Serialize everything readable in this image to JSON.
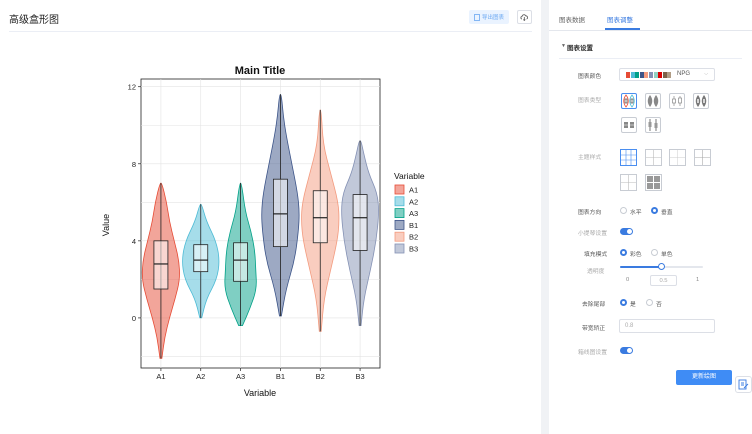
{
  "page": {
    "title": "高级盒形图",
    "export_label": "导出图表",
    "cloud_icon": "cloud-download-icon"
  },
  "panel": {
    "tabs": [
      {
        "label": "图表数据",
        "active": false
      },
      {
        "label": "图表调整",
        "active": true
      }
    ],
    "section_title": "图表设置",
    "color_label": "图表颜色",
    "palette": {
      "name": "NPG",
      "colors": [
        "#e64b35",
        "#4dbbd5",
        "#00a087",
        "#3c5488",
        "#f39b7f",
        "#8491b4",
        "#91d1c2",
        "#dc0000",
        "#7e6148",
        "#b09c85"
      ]
    },
    "chart_type_label": "图表类型",
    "theme_label": "主题样式",
    "orientation": {
      "label": "图表方向",
      "options": [
        "水平",
        "垂直"
      ],
      "selected": 1
    },
    "violin_label": "小提琴设置",
    "violin_enabled": true,
    "fill": {
      "label": "填充模式",
      "options": [
        "彩色",
        "单色"
      ],
      "selected": 0
    },
    "opacity": {
      "label": "透明度",
      "min": "0",
      "value": "0.5",
      "max": "1",
      "fraction": 0.5
    },
    "trim": {
      "label": "去除尾部",
      "options": [
        "是",
        "否"
      ],
      "selected": 0
    },
    "bandwidth": {
      "label": "带宽矫正",
      "placeholder": "0.8"
    },
    "boxline_label": "箱线图设置",
    "boxline_enabled": true,
    "update_label": "更新绘图"
  },
  "chart_data": {
    "type": "violin",
    "title": "Main Title",
    "xlabel": "Variable",
    "ylabel": "Value",
    "ylim": [
      -2.6,
      12.4
    ],
    "yticks": [
      0,
      4,
      8,
      12
    ],
    "legend_title": "Variable",
    "legend_position": "right",
    "grid": true,
    "series": [
      {
        "name": "A1",
        "color": "#e64b35",
        "min": -2.1,
        "max": 7.0,
        "q1": 1.5,
        "median": 2.8,
        "q3": 4.0,
        "density": [
          [
            -2.1,
            0.05
          ],
          [
            -1.0,
            0.2
          ],
          [
            0.0,
            0.45
          ],
          [
            1.0,
            0.75
          ],
          [
            2.0,
            1.0
          ],
          [
            3.0,
            0.95
          ],
          [
            4.0,
            0.7
          ],
          [
            5.0,
            0.45
          ],
          [
            6.0,
            0.3
          ],
          [
            7.0,
            0.05
          ]
        ]
      },
      {
        "name": "A2",
        "color": "#4dbbd5",
        "min": 0.0,
        "max": 5.9,
        "q1": 2.4,
        "median": 3.0,
        "q3": 3.8,
        "density": [
          [
            0.0,
            0.05
          ],
          [
            1.0,
            0.3
          ],
          [
            2.0,
            0.85
          ],
          [
            3.0,
            1.0
          ],
          [
            4.0,
            0.8
          ],
          [
            5.0,
            0.3
          ],
          [
            5.9,
            0.05
          ]
        ]
      },
      {
        "name": "A3",
        "color": "#00a087",
        "min": -0.4,
        "max": 7.0,
        "q1": 1.9,
        "median": 3.0,
        "q3": 3.9,
        "density": [
          [
            -0.4,
            0.1
          ],
          [
            0.5,
            0.5
          ],
          [
            1.5,
            0.85
          ],
          [
            2.5,
            0.8
          ],
          [
            3.5,
            0.75
          ],
          [
            4.5,
            0.55
          ],
          [
            5.5,
            0.25
          ],
          [
            7.0,
            0.05
          ]
        ]
      },
      {
        "name": "B1",
        "color": "#3c5488",
        "min": 0.1,
        "max": 11.6,
        "q1": 3.7,
        "median": 5.4,
        "q3": 7.2,
        "density": [
          [
            0.1,
            0.05
          ],
          [
            1.5,
            0.3
          ],
          [
            3.0,
            0.75
          ],
          [
            4.5,
            0.95
          ],
          [
            5.5,
            1.0
          ],
          [
            6.5,
            0.9
          ],
          [
            8.0,
            0.6
          ],
          [
            9.5,
            0.3
          ],
          [
            10.5,
            0.15
          ],
          [
            11.6,
            0.05
          ]
        ]
      },
      {
        "name": "B2",
        "color": "#f39b7f",
        "min": -0.7,
        "max": 10.8,
        "q1": 3.9,
        "median": 5.2,
        "q3": 6.6,
        "density": [
          [
            -0.7,
            0.05
          ],
          [
            1.0,
            0.2
          ],
          [
            2.5,
            0.55
          ],
          [
            4.0,
            0.9
          ],
          [
            5.0,
            1.0
          ],
          [
            6.0,
            0.95
          ],
          [
            7.5,
            0.55
          ],
          [
            9.0,
            0.15
          ],
          [
            10.8,
            0.05
          ]
        ]
      },
      {
        "name": "B3",
        "color": "#8491b4",
        "min": -0.4,
        "max": 9.2,
        "q1": 3.5,
        "median": 5.2,
        "q3": 6.4,
        "density": [
          [
            -0.4,
            0.05
          ],
          [
            1.0,
            0.2
          ],
          [
            2.5,
            0.55
          ],
          [
            4.0,
            0.85
          ],
          [
            5.5,
            1.0
          ],
          [
            6.5,
            0.9
          ],
          [
            7.5,
            0.45
          ],
          [
            8.5,
            0.2
          ],
          [
            9.2,
            0.05
          ]
        ]
      }
    ]
  }
}
